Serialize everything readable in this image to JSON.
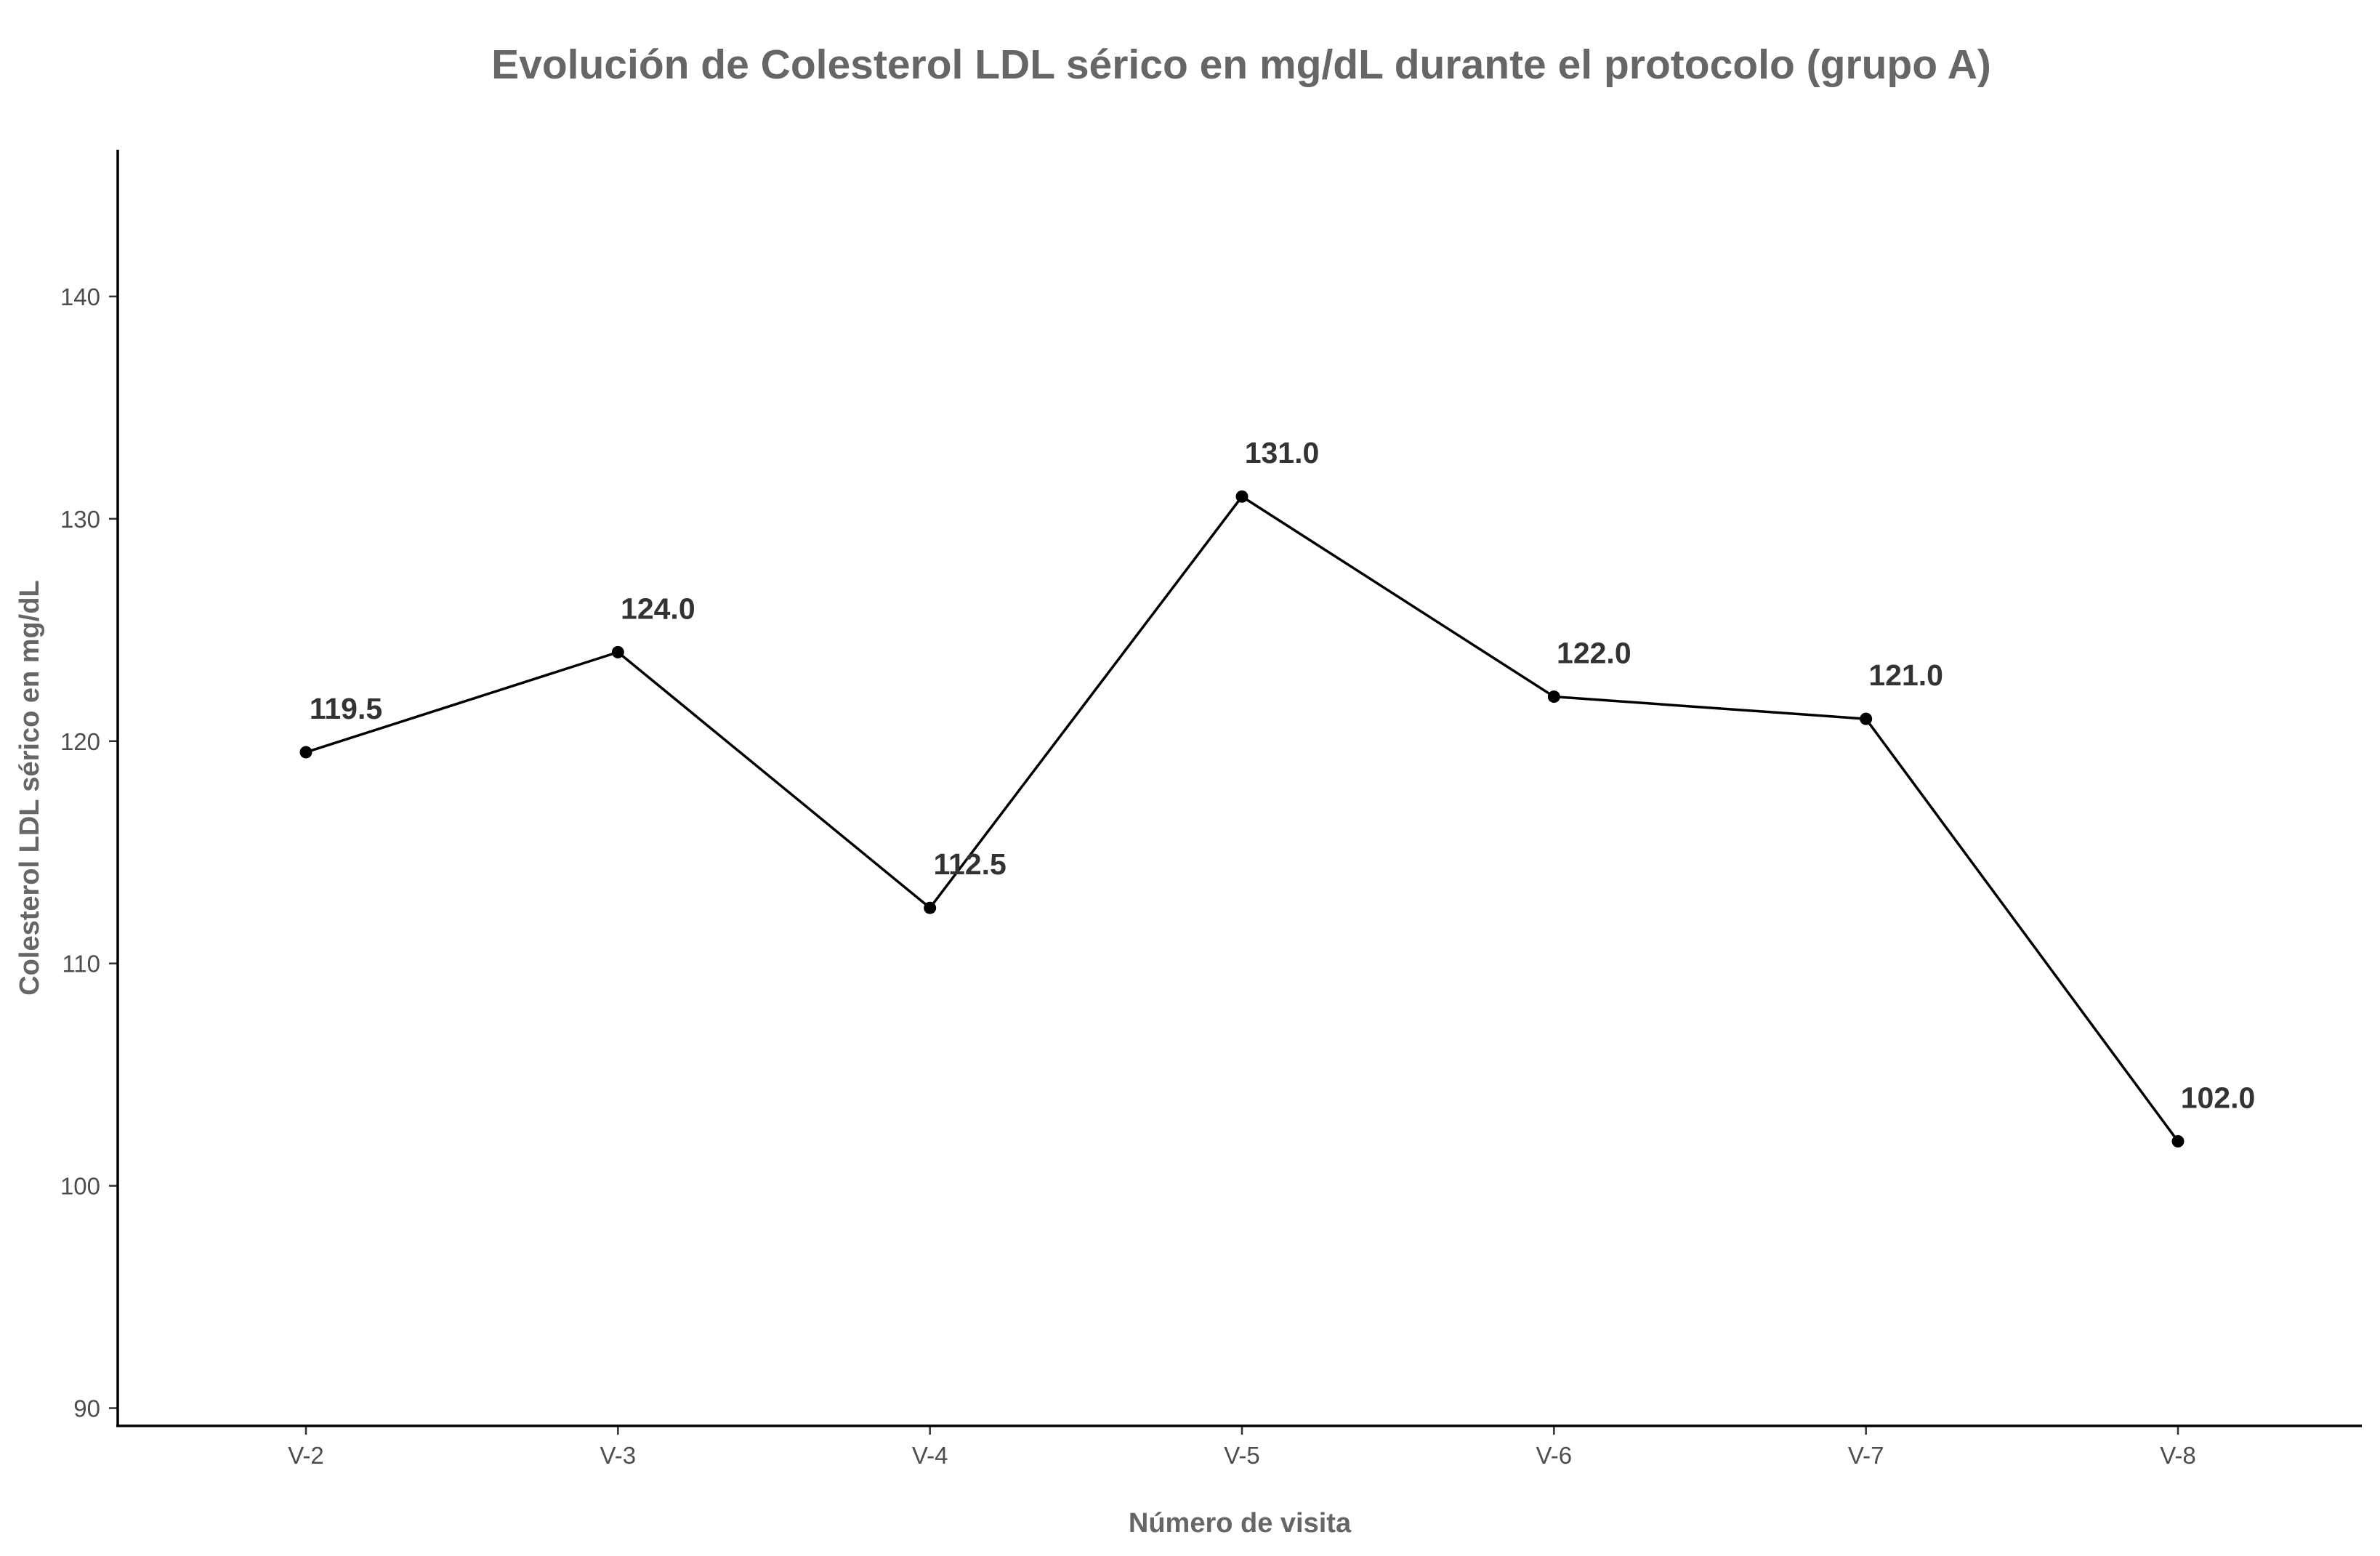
{
  "chart_data": {
    "type": "line",
    "title": "Evolución de Colesterol LDL sérico en mg/dL durante el protocolo (grupo A)",
    "xlabel": "Número de visita",
    "ylabel": "Colesterol LDL sérico en mg/dL",
    "categories": [
      "V-2",
      "V-3",
      "V-4",
      "V-5",
      "V-6",
      "V-7",
      "V-8"
    ],
    "series": [
      {
        "values": [
          119.5,
          124.0,
          112.5,
          131.0,
          122.0,
          121.0,
          102.0
        ],
        "labels": [
          "119.5",
          "124.0",
          "112.5",
          "131.0",
          "122.0",
          "121.0",
          "102.0"
        ],
        "color": "#000000"
      }
    ],
    "yticks": [
      90,
      100,
      110,
      120,
      130,
      140
    ],
    "ylim": [
      89.2,
      146.6
    ],
    "grid": false,
    "legend": "none"
  }
}
